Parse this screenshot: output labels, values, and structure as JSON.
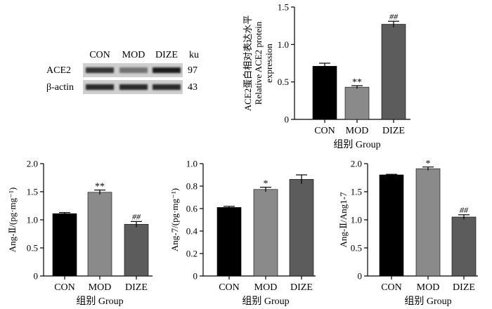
{
  "western_blot": {
    "lane_labels": [
      "CON",
      "MOD",
      "DIZE"
    ],
    "unit_header": "ku",
    "rows": [
      {
        "protein": "ACE2",
        "size": "97",
        "intensities": [
          0.85,
          0.55,
          0.95
        ]
      },
      {
        "protein": "β-actin",
        "size": "43",
        "intensities": [
          0.9,
          0.9,
          0.9
        ]
      }
    ]
  },
  "colors": {
    "CON": "#000000",
    "MOD": "#8a8a8a",
    "DIZE": "#5c5c5c"
  },
  "chart_data": [
    {
      "id": "ace2",
      "type": "bar",
      "categories": [
        "CON",
        "MOD",
        "DIZE"
      ],
      "values": [
        0.71,
        0.43,
        1.27
      ],
      "errors": [
        0.04,
        0.02,
        0.04
      ],
      "annotations": [
        "",
        "**",
        "##"
      ],
      "ylabel": "ACE2蛋白相对表达水平",
      "ylabel_line2": "Relative ACE2 protein",
      "ylabel_line3": "expression",
      "xlabel": "组别 Group",
      "ylim": [
        0,
        1.5
      ],
      "yticks": [
        "0",
        "0.5",
        "1.0",
        "1.5"
      ]
    },
    {
      "id": "angII",
      "type": "bar",
      "categories": [
        "CON",
        "MOD",
        "DIZE"
      ],
      "values": [
        1.11,
        1.49,
        0.92
      ],
      "errors": [
        0.02,
        0.04,
        0.05
      ],
      "annotations": [
        "",
        "**",
        "##"
      ],
      "ylabel": "Ang-Ⅱ/(pg·mg⁻¹)",
      "xlabel": "组别 Group",
      "ylim": [
        0,
        2.0
      ],
      "yticks": [
        "0",
        "0.5",
        "1.0",
        "1.5",
        "2.0"
      ]
    },
    {
      "id": "ang17",
      "type": "bar",
      "categories": [
        "CON",
        "MOD",
        "DIZE"
      ],
      "values": [
        0.61,
        0.77,
        0.86
      ],
      "errors": [
        0.01,
        0.02,
        0.04
      ],
      "annotations": [
        "",
        "*",
        ""
      ],
      "ylabel": "Ang-7/(pg·mg⁻¹)",
      "xlabel": "组别 Group",
      "ylim": [
        0,
        1.0
      ],
      "yticks": [
        "0",
        "0.2",
        "0.4",
        "0.6",
        "0.8",
        "1.0"
      ]
    },
    {
      "id": "ratio",
      "type": "bar",
      "categories": [
        "CON",
        "MOD",
        "DIZE"
      ],
      "values": [
        1.8,
        1.91,
        1.05
      ],
      "errors": [
        0.01,
        0.03,
        0.04
      ],
      "annotations": [
        "",
        "*",
        "##"
      ],
      "ylabel": "Ang-Ⅱ/Ang1-7",
      "xlabel": "组别 Group",
      "ylim": [
        0,
        2.0
      ],
      "yticks": [
        "0",
        "0.5",
        "1.0",
        "1.5",
        "2.0"
      ]
    }
  ]
}
